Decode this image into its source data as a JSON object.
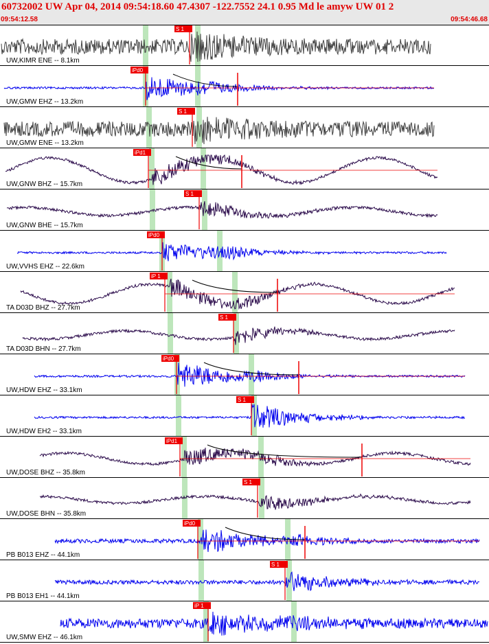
{
  "header": {
    "title": "60732002 UW Apr 04, 2014 09:54:18.60    47.4307 -122.7552 24.1 0.95 Md le amyw UW 01   2",
    "time_start": "09:54:12.58",
    "time_end": "09:54:46.68"
  },
  "colors": {
    "header_text": "#e00000",
    "header_bg": "#e8e8e8",
    "pick_box": "#ee0000",
    "pick_window": "#b6e3b4",
    "trace_black": "#404040",
    "trace_blue": "#0000ee",
    "trace_purple": "#2a0a4a",
    "coda_line": "#000000"
  },
  "icons": {
    "pick_marker": "red-flag-box",
    "coda_fit": "decay-curve"
  },
  "traces": [
    {
      "label": "UW,KIMR ENE -- 8.1km",
      "color": "black",
      "pick": "S 1",
      "rel": "ok"
    },
    {
      "label": "UW,GMW EHZ -- 13.2km",
      "color": "blue",
      "pick": "iPd0",
      "rel": "ok"
    },
    {
      "label": "UW,GMW ENE -- 13.2km",
      "color": "black",
      "pick": "S 1",
      "rel": "ok"
    },
    {
      "label": "UW,GNW BHZ -- 15.7km",
      "color": "purple",
      "pick": "iPd1",
      "rel": "ok"
    },
    {
      "label": "UW,GNW BHE -- 15.7km",
      "color": "purple",
      "pick": "S 1",
      "rel": "ok"
    },
    {
      "label": "UW,VVHS EHZ -- 22.6km",
      "color": "blue",
      "pick": "iPd0",
      "rel": "ok"
    },
    {
      "label": "TA D03D BHZ -- 27.7km",
      "color": "purple",
      "pick": "iP 1",
      "rel": "ok"
    },
    {
      "label": "TA D03D BHN -- 27.7km",
      "color": "purple",
      "pick": "S 1",
      "rel": "ok"
    },
    {
      "label": "UW,HDW EHZ -- 33.1km",
      "color": "blue",
      "pick": "iPd0",
      "rel": "ok"
    },
    {
      "label": "UW,HDW EH2 -- 33.1km",
      "color": "blue",
      "pick": "S 1",
      "rel": "ok"
    },
    {
      "label": "UW,DOSE BHZ -- 35.8km",
      "color": "purple",
      "pick": "iPd1",
      "rel": "ok"
    },
    {
      "label": "UW,DOSE BHN -- 35.8km",
      "color": "purple",
      "pick": "S 1",
      "rel": "ok"
    },
    {
      "label": "PB B013 EHZ -- 44.1km",
      "color": "blue",
      "pick": "iPd0",
      "rel": "ok"
    },
    {
      "label": "PB B013 EH1 -- 44.1km",
      "color": "blue",
      "pick": "S 1",
      "rel": "ok"
    },
    {
      "label": "UW,SMW EHZ -- 46.1km",
      "color": "blue",
      "pick": "iP 1",
      "rel": "ok"
    }
  ]
}
